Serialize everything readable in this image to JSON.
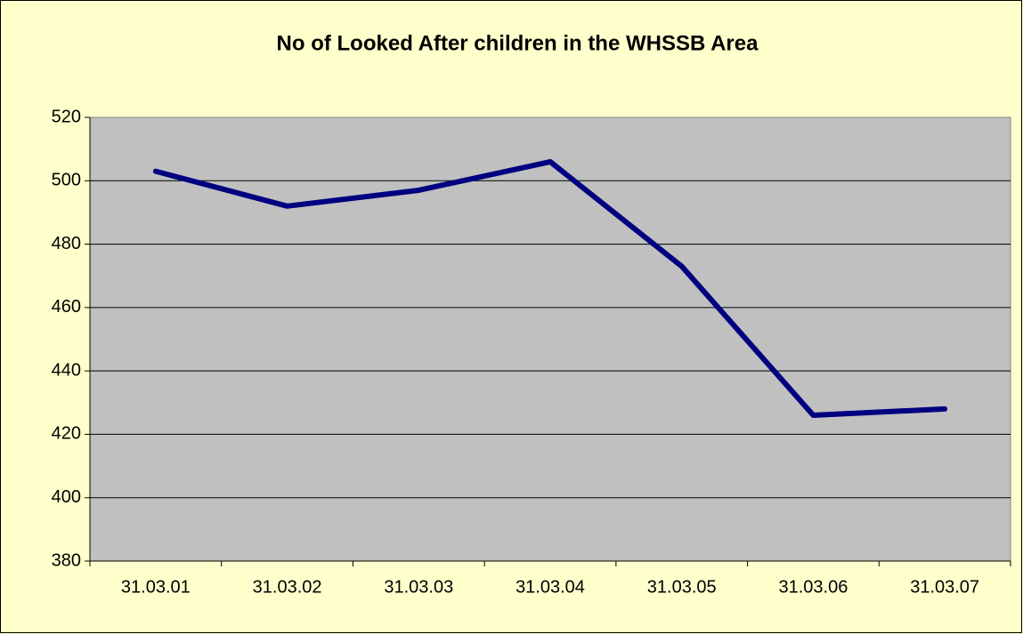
{
  "chart_data": {
    "type": "line",
    "title": "No of Looked After children in the WHSSB Area",
    "categories": [
      "31.03.01",
      "31.03.02",
      "31.03.03",
      "31.03.04",
      "31.03.05",
      "31.03.06",
      "31.03.07"
    ],
    "values": [
      503,
      492,
      497,
      506,
      473,
      426,
      428
    ],
    "color": "#000080",
    "ylim": [
      380,
      520
    ],
    "yticks": [
      380,
      400,
      420,
      440,
      460,
      480,
      500,
      520
    ],
    "grid": true
  }
}
